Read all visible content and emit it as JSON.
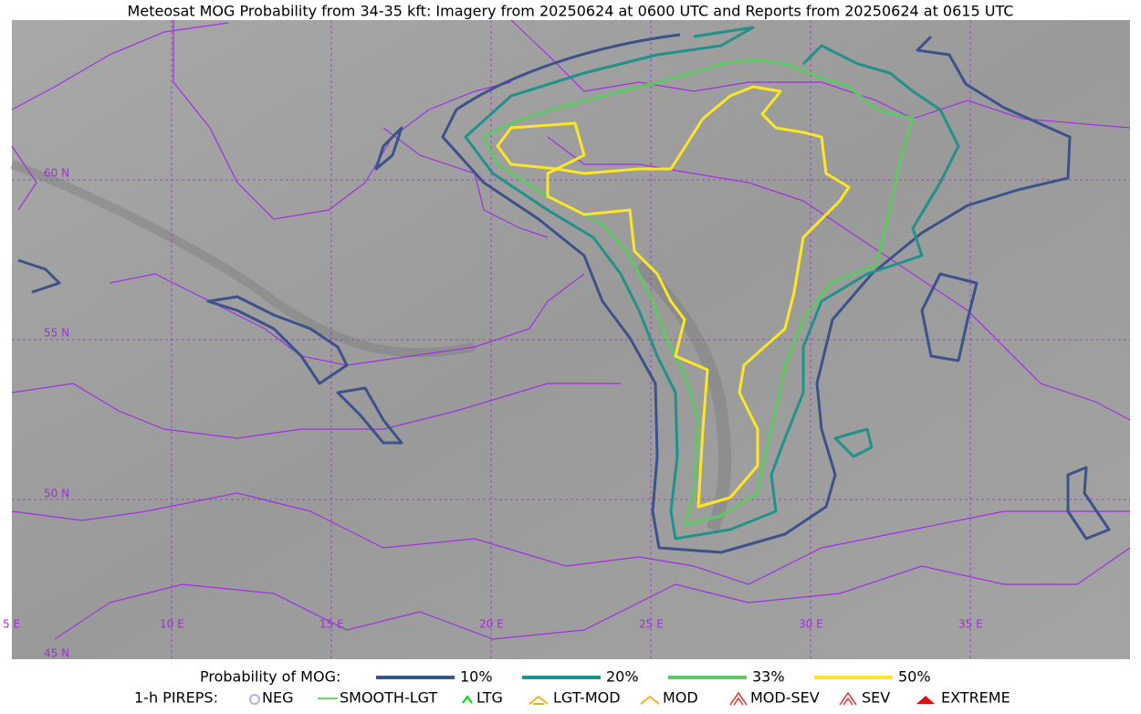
{
  "title": "Meteosat MOG Probability from 34-35 kft: Imagery from 20250624 at 0600 UTC and Reports from 20250624 at 0615 UTC",
  "grid_labels": {
    "lat": [
      "60 N",
      "55 N",
      "50 N",
      "45 N"
    ],
    "lon": [
      "5 E",
      "10 E",
      "15 E",
      "20 E",
      "25 E",
      "30 E",
      "35 E"
    ]
  },
  "legend": {
    "probability": {
      "label": "Probability of MOG:",
      "items": [
        {
          "label": "10%",
          "color": "#3b528b"
        },
        {
          "label": "20%",
          "color": "#21918c"
        },
        {
          "label": "33%",
          "color": "#5ec962"
        },
        {
          "label": "50%",
          "color": "#fde725"
        }
      ]
    },
    "pireps": {
      "label": "1-h PIREPS:",
      "items": [
        {
          "label": "NEG",
          "color": "#b0b0f0"
        },
        {
          "label": "SMOOTH-LGT",
          "color": "#33cc33"
        },
        {
          "label": "LTG",
          "color": "#00dd00"
        },
        {
          "label": "LGT-MOD",
          "color": "#f0b020"
        },
        {
          "label": "MOD",
          "color": "#f0b020"
        },
        {
          "label": "MOD-SEV",
          "color": "#e03030"
        },
        {
          "label": "SEV",
          "color": "#e03030"
        },
        {
          "label": "EXTREME",
          "color": "#e01010"
        }
      ]
    }
  }
}
